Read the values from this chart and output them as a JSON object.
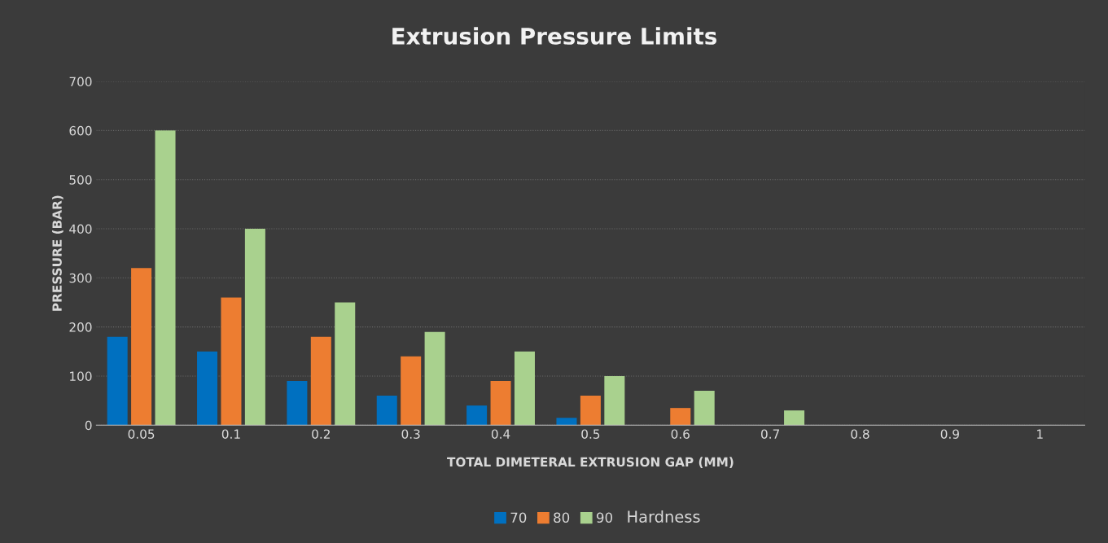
{
  "chart_data": {
    "type": "bar",
    "title": "Extrusion Pressure Limits",
    "xlabel": "TOTAL DIMETERAL EXTRUSION GAP (MM)",
    "ylabel": "PRESSURE (BAR)",
    "legend_title": "Hardness",
    "categories": [
      "0.05",
      "0.1",
      "0.2",
      "0.3",
      "0.4",
      "0.5",
      "0.6",
      "0.7",
      "0.8",
      "0.9",
      "1"
    ],
    "series": [
      {
        "name": "70",
        "color": "#0070c0",
        "values": [
          180,
          150,
          90,
          60,
          40,
          15,
          0,
          0,
          0,
          0,
          0
        ]
      },
      {
        "name": "80",
        "color": "#ed7d31",
        "values": [
          320,
          260,
          180,
          140,
          90,
          60,
          35,
          0,
          0,
          0,
          0
        ]
      },
      {
        "name": "90",
        "color": "#a9d18e",
        "values": [
          600,
          400,
          250,
          190,
          150,
          100,
          70,
          30,
          0,
          0,
          0
        ]
      }
    ],
    "ylim": [
      0,
      700
    ],
    "yticks": [
      0,
      100,
      200,
      300,
      400,
      500,
      600,
      700
    ],
    "grid": "y",
    "legend": "bottom"
  }
}
